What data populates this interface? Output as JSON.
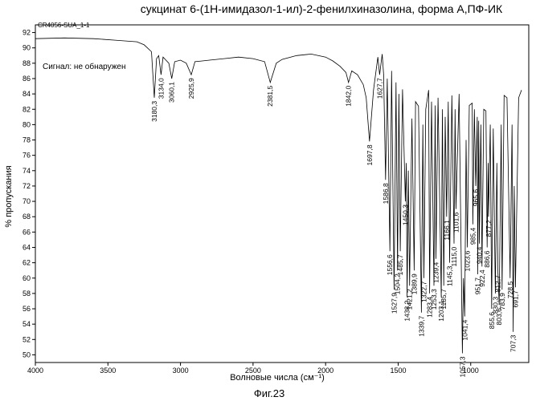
{
  "chart_data": {
    "type": "line",
    "title": "сукцинат 6-(1H-имидазол-1-ил)-2-фенилхиназолина, форма А,ПФ-ИК",
    "sample_id": "CR4056-SUA_1-1",
    "annotation": "Сигнал: не обнаружен",
    "xlabel": "Волновые числа (см⁻¹)",
    "ylabel": "% пропускания",
    "caption": "Фиг.23",
    "xlim": [
      4000,
      600
    ],
    "x_reversed": true,
    "ylim": [
      49,
      93
    ],
    "x_ticks": [
      4000,
      3500,
      3000,
      2500,
      2000,
      1500,
      1000
    ],
    "y_ticks": [
      50,
      52,
      54,
      56,
      58,
      60,
      62,
      64,
      66,
      68,
      70,
      72,
      74,
      76,
      78,
      80,
      82,
      84,
      86,
      88,
      90,
      92
    ],
    "grid": false,
    "line_color": "#000000",
    "series": [
      {
        "x": [
          4000,
          3800,
          3600,
          3450,
          3300,
          3250,
          3200,
          3180.3,
          3165,
          3150,
          3134,
          3120,
          3100,
          3080,
          3060.1,
          3040,
          3000,
          2960,
          2925.9,
          2900,
          2850,
          2800,
          2700,
          2600,
          2500,
          2420,
          2381.5,
          2340,
          2300,
          2200,
          2100,
          2000,
          1950,
          1900,
          1860,
          1842,
          1820,
          1780,
          1740,
          1720,
          1697.8,
          1670,
          1640,
          1627.7,
          1610,
          1600,
          1586.8,
          1575,
          1556.6,
          1545,
          1527.9,
          1515,
          1504.2,
          1495,
          1485.7,
          1470,
          1450.3,
          1444,
          1438.2,
          1430,
          1421.2,
          1405,
          1389.9,
          1380,
          1360,
          1339.7,
          1330,
          1322.7,
          1310,
          1290,
          1283.4,
          1270,
          1253.3,
          1245,
          1239.4,
          1225,
          1203.1,
          1195,
          1185.7,
          1176,
          1166.1,
          1155,
          1145.3,
          1130,
          1115,
          1108,
          1101.6,
          1080,
          1057.3,
          1050,
          1041.4,
          1032,
          1023.6,
          1010,
          990,
          985.4,
          975,
          965.6,
          955,
          951.7,
          945,
          940.4,
          930,
          922.4,
          910,
          895,
          886.6,
          880,
          877.2,
          865,
          855.6,
          845,
          830.3,
          820,
          812.7,
          803.6,
          790,
          783.9,
          770,
          750,
          728.5,
          715,
          707.3,
          700,
          691.7,
          670,
          650
        ],
        "y": [
          91.2,
          91.3,
          91.2,
          91.0,
          90.8,
          90.4,
          89.5,
          83.5,
          88.6,
          89.0,
          86.5,
          88.8,
          88.4,
          88.0,
          86.0,
          88.2,
          88.4,
          88.0,
          86.5,
          88.2,
          88.3,
          88.4,
          88.6,
          88.8,
          88.6,
          88.2,
          85.5,
          88.0,
          88.5,
          89.0,
          89.2,
          88.8,
          88.3,
          87.6,
          86.8,
          85.5,
          87.0,
          86.5,
          85.2,
          83.5,
          77.8,
          84.5,
          88.8,
          86.5,
          89.2,
          86.5,
          72.8,
          86.0,
          63.5,
          87.0,
          58.5,
          85.5,
          61.0,
          84.0,
          63.5,
          84.6,
          70.0,
          75.0,
          57.5,
          74.0,
          59.0,
          80.8,
          61.0,
          83.0,
          82.4,
          55.5,
          80.0,
          60.0,
          82.0,
          84.5,
          58.0,
          83.0,
          59.0,
          82.5,
          62.5,
          83.5,
          57.5,
          82.0,
          59.0,
          81.0,
          68.0,
          83.0,
          62.0,
          83.8,
          64.5,
          82.0,
          69.0,
          84.0,
          50.2,
          60.0,
          55.0,
          78.0,
          64.0,
          82.5,
          82.8,
          67.0,
          82.0,
          72.0,
          81.0,
          60.5,
          80.5,
          64.5,
          80.0,
          61.5,
          82.0,
          81.8,
          64.0,
          75.0,
          68.0,
          80.0,
          56.0,
          79.5,
          58.0,
          75.0,
          60.8,
          56.5,
          80.0,
          58.5,
          83.8,
          83.5,
          60.0,
          80.0,
          53.0,
          72.0,
          58.8,
          83.5,
          84.5
        ]
      }
    ],
    "peak_labels": [
      "3180,3",
      "3134,0",
      "3060,1",
      "2925,9",
      "2381,5",
      "1842,0",
      "1697,8",
      "1627,7",
      "1586,8",
      "1556,6",
      "1527,9",
      "1504,2",
      "1485,7",
      "1450,3",
      "1438,2",
      "1421,2",
      "1389,9",
      "1339,7",
      "1322,7",
      "1283,4",
      "1253,3",
      "1239,4",
      "1203,1",
      "1185,7",
      "1166,1",
      "1145,3",
      "1115,0",
      "1101,6",
      "1057,3",
      "1041,4",
      "1023,6",
      "985,4",
      "965,6",
      "951,7",
      "940,4",
      "922,4",
      "886,6",
      "877,2",
      "855,6",
      "830,3",
      "812,7",
      "803,6",
      "783,9",
      "728,5",
      "707,3",
      "691,7"
    ]
  }
}
